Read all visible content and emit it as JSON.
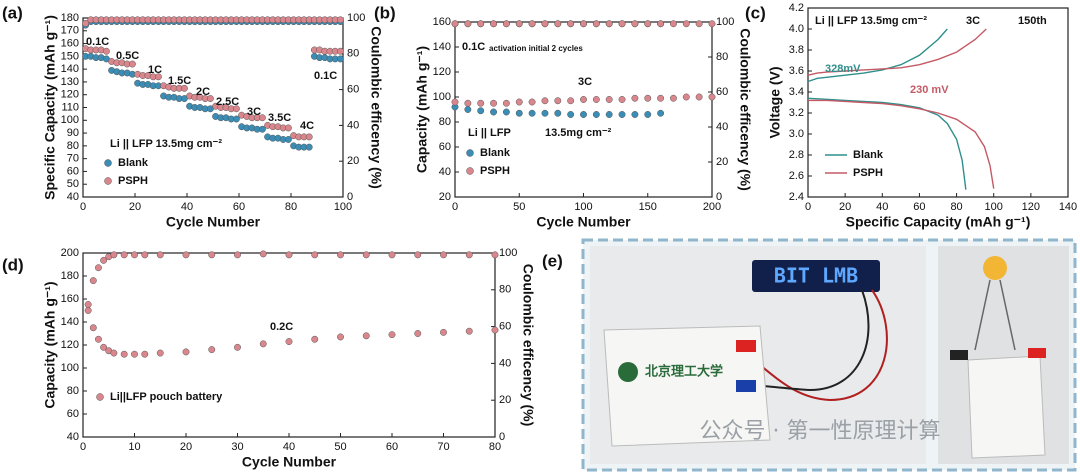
{
  "chart_data": [
    {
      "panel": "(a)",
      "type": "scatter",
      "xlabel": "Cycle Number",
      "ylabel": "Specific Capacity (mAh g⁻¹)",
      "y2label": "Coulombic efficency (%)",
      "xlim": [
        0,
        100
      ],
      "xticks": [
        0,
        20,
        40,
        60,
        80,
        100
      ],
      "ylim": [
        40,
        180
      ],
      "yticks": [
        40,
        50,
        60,
        70,
        80,
        90,
        100,
        110,
        120,
        130,
        140,
        150,
        160,
        170,
        180
      ],
      "y2lim": [
        0,
        100
      ],
      "y2ticks": [
        0,
        20,
        40,
        60,
        80,
        100
      ],
      "x": [
        1,
        3,
        5,
        7,
        9,
        11,
        13,
        15,
        17,
        19,
        21,
        23,
        25,
        27,
        29,
        31,
        33,
        35,
        37,
        39,
        41,
        43,
        45,
        47,
        49,
        51,
        53,
        55,
        57,
        59,
        61,
        63,
        65,
        67,
        69,
        71,
        73,
        75,
        77,
        79,
        81,
        83,
        85,
        87,
        89,
        91,
        93,
        95,
        97,
        99
      ],
      "series": [
        {
          "name": "Blank",
          "color": "#3b8db5",
          "values": [
            150,
            150,
            149,
            149,
            148,
            139,
            138,
            137,
            137,
            136,
            129,
            128,
            128,
            127,
            127,
            119,
            118,
            118,
            117,
            117,
            111,
            110,
            110,
            109,
            109,
            103,
            102,
            102,
            101,
            101,
            95,
            94,
            94,
            93,
            93,
            87,
            86,
            86,
            85,
            85,
            80,
            79,
            79,
            79,
            150,
            149,
            149,
            148,
            148,
            148
          ]
        },
        {
          "name": "PSPH",
          "color": "#d9868d",
          "values": [
            156,
            155,
            155,
            155,
            154,
            146,
            145,
            145,
            144,
            144,
            136,
            135,
            135,
            134,
            134,
            127,
            126,
            125,
            125,
            125,
            119,
            118,
            118,
            117,
            117,
            111,
            110,
            110,
            109,
            109,
            104,
            103,
            102,
            102,
            102,
            96,
            95,
            95,
            94,
            94,
            88,
            87,
            87,
            87,
            155,
            155,
            154,
            154,
            154,
            154
          ]
        },
        {
          "color": "#3b8db5",
          "axis": "y2",
          "values": [
            96,
            98,
            98,
            98,
            98,
            98,
            98,
            98,
            98,
            98,
            98,
            98,
            98,
            98,
            98,
            98,
            98,
            98,
            98,
            98,
            98,
            98,
            98,
            98,
            98,
            98,
            98,
            98,
            98,
            98,
            98,
            98,
            98,
            98,
            98,
            98,
            98,
            98,
            98,
            98,
            98,
            98,
            98,
            98,
            98,
            98,
            98,
            98,
            98,
            98
          ]
        },
        {
          "color": "#d9868d",
          "axis": "y2",
          "values": [
            97,
            99,
            99,
            99,
            99,
            99,
            99,
            99,
            99,
            99,
            99,
            99,
            99,
            99,
            99,
            99,
            99,
            99,
            99,
            99,
            99,
            99,
            99,
            99,
            99,
            99,
            99,
            99,
            99,
            99,
            99,
            99,
            99,
            99,
            99,
            99,
            99,
            99,
            99,
            99,
            99,
            99,
            99,
            99,
            99,
            99,
            99,
            99,
            99,
            99
          ]
        }
      ],
      "annotations": [
        "0.1C",
        "0.5C",
        "1C",
        "1.5C",
        "2C",
        "2.5C",
        "3C",
        "3.5C",
        "4C",
        "0.1C",
        "Li || LFP  13.5mg cm⁻²"
      ]
    },
    {
      "panel": "(b)",
      "type": "scatter",
      "xlabel": "Cycle Number",
      "ylabel": "Capacity (mAh g⁻¹)",
      "y2label": "Coulombic efficency (%)",
      "xlim": [
        0,
        200
      ],
      "xticks": [
        0,
        50,
        100,
        150,
        200
      ],
      "ylim": [
        20,
        160
      ],
      "yticks": [
        20,
        40,
        60,
        80,
        100,
        120,
        140,
        160
      ],
      "y2lim": [
        0,
        100
      ],
      "y2ticks": [
        0,
        20,
        40,
        60,
        80,
        100
      ],
      "x": [
        0,
        10,
        20,
        30,
        40,
        50,
        60,
        70,
        80,
        90,
        100,
        110,
        120,
        130,
        140,
        150,
        160,
        170,
        180,
        190,
        200
      ],
      "series": [
        {
          "name": "Blank",
          "color": "#3b8db5",
          "values": [
            92,
            90,
            89,
            88,
            88,
            87,
            87,
            87,
            87,
            86,
            86,
            86,
            86,
            86,
            86,
            86,
            87,
            null,
            null,
            null,
            null
          ]
        },
        {
          "name": "PSPH",
          "color": "#d9868d",
          "values": [
            96,
            95,
            95,
            95,
            95,
            96,
            96,
            97,
            97,
            97,
            98,
            98,
            98,
            98,
            99,
            99,
            99,
            99,
            100,
            100,
            100
          ]
        },
        {
          "color": "#3b8db5",
          "axis": "y2",
          "values": [
            99,
            99,
            99,
            99,
            99,
            99,
            99,
            99,
            99,
            99,
            99,
            99,
            99,
            99,
            99,
            99,
            99,
            null,
            null,
            null,
            null
          ]
        },
        {
          "color": "#d9868d",
          "axis": "y2",
          "values": [
            99,
            99,
            99,
            99,
            99,
            99,
            99,
            99,
            99,
            99,
            99,
            99,
            99,
            99,
            99,
            99,
            99,
            99,
            99,
            99,
            99
          ]
        }
      ],
      "annotations": [
        "0.1C",
        "activation initial 2 cycles",
        "3C",
        "Li || LFP",
        "13.5mg cm⁻²"
      ]
    },
    {
      "panel": "(c)",
      "type": "line",
      "xlabel": "Specific Capacity (mAh g⁻¹)",
      "ylabel": "Voltage (V)",
      "xlim": [
        0,
        140
      ],
      "xticks": [
        0,
        20,
        40,
        60,
        80,
        100,
        120,
        140
      ],
      "ylim": [
        2.4,
        4.2
      ],
      "yticks": [
        2.4,
        2.6,
        2.8,
        {
          "value": 3,
          "label": "3.0"
        },
        3.2,
        3.4,
        3.6,
        3.8,
        {
          "value": 4,
          "label": "4.0"
        },
        4.2
      ],
      "series": [
        {
          "name": "Blank",
          "color": "#2f8f8c",
          "x": [
            0,
            5,
            10,
            20,
            30,
            40,
            50,
            60,
            70,
            75
          ],
          "values": [
            3.5,
            3.53,
            3.54,
            3.56,
            3.58,
            3.61,
            3.66,
            3.75,
            3.9,
            4.0
          ]
        },
        {
          "name": "PSPH",
          "color": "#c45a66",
          "x": [
            0,
            5,
            10,
            20,
            30,
            40,
            50,
            60,
            70,
            80,
            90,
            96
          ],
          "values": [
            3.56,
            3.58,
            3.59,
            3.6,
            3.61,
            3.62,
            3.63,
            3.66,
            3.71,
            3.78,
            3.9,
            4.0
          ]
        },
        {
          "color": "#2f8f8c",
          "x": [
            0,
            10,
            20,
            30,
            40,
            50,
            60,
            70,
            75,
            80,
            83,
            85
          ],
          "values": [
            3.34,
            3.33,
            3.32,
            3.31,
            3.3,
            3.28,
            3.25,
            3.18,
            3.1,
            2.95,
            2.75,
            2.47
          ]
        },
        {
          "color": "#c45a66",
          "x": [
            0,
            10,
            20,
            30,
            40,
            50,
            60,
            70,
            80,
            90,
            95,
            98,
            100
          ],
          "values": [
            3.32,
            3.32,
            3.31,
            3.3,
            3.29,
            3.27,
            3.24,
            3.2,
            3.14,
            3.02,
            2.88,
            2.7,
            2.48
          ]
        }
      ],
      "annotations": [
        "Li || LFP  13.5mg cm⁻²",
        "3C",
        "150th",
        "328mV",
        "230 mV"
      ]
    },
    {
      "panel": "(d)",
      "type": "scatter",
      "xlabel": "Cycle Number",
      "ylabel": "Capacity (mAh g⁻¹)",
      "y2label": "Coulombic efficency (%)",
      "xlim": [
        0,
        80
      ],
      "xticks": [
        0,
        10,
        20,
        30,
        40,
        50,
        60,
        70,
        80
      ],
      "ylim": [
        40,
        200
      ],
      "yticks": [
        40,
        60,
        80,
        100,
        120,
        140,
        160,
        180,
        200
      ],
      "y2lim": [
        0,
        100
      ],
      "y2ticks": [
        0,
        20,
        40,
        60,
        80,
        100
      ],
      "x": [
        1,
        2,
        3,
        4,
        5,
        6,
        8,
        10,
        12,
        15,
        20,
        25,
        30,
        35,
        40,
        45,
        50,
        55,
        60,
        65,
        70,
        75,
        80
      ],
      "series": [
        {
          "name": "Li||LFP pouch battery",
          "color": "#d9868d",
          "values": [
            150,
            135,
            125,
            118,
            115,
            113,
            112,
            112,
            112,
            113,
            114,
            116,
            118,
            121,
            123,
            125,
            127,
            128,
            129,
            130,
            131,
            132,
            133
          ]
        },
        {
          "color": "#d9868d",
          "axis": "y2",
          "values": [
            72,
            85,
            92,
            96,
            98,
            99,
            99,
            99,
            99,
            99,
            99,
            99,
            99,
            99.5,
            99,
            99,
            99,
            99,
            99,
            99,
            99,
            99,
            99
          ]
        }
      ],
      "annotations": [
        "0.2C"
      ]
    }
  ],
  "photo": {
    "panel": "(e)",
    "sign": "BIT LMB",
    "battery_label": "北京理工大学",
    "watermark": "公众号 · 第一性原理计算"
  }
}
